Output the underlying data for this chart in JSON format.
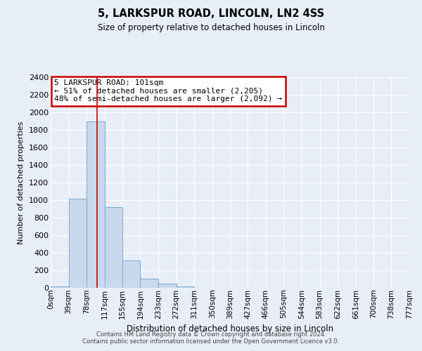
{
  "title": "5, LARKSPUR ROAD, LINCOLN, LN2 4SS",
  "subtitle": "Size of property relative to detached houses in Lincoln",
  "xlabel": "Distribution of detached houses by size in Lincoln",
  "ylabel": "Number of detached properties",
  "bar_color": "#c8d9ee",
  "bar_edgecolor": "#7aaacf",
  "bg_color": "#e8eef8",
  "grid_color": "#ffffff",
  "red_line_x": 101,
  "annotation_box_text": "5 LARKSPUR ROAD: 101sqm\n← 51% of detached houses are smaller (2,205)\n48% of semi-detached houses are larger (2,092) →",
  "annotation_box_color": "#ffffff",
  "annotation_box_edgecolor": "#cc0000",
  "footer1": "Contains HM Land Registry data © Crown copyright and database right 2024.",
  "footer2": "Contains public sector information licensed under the Open Government Licence v3.0.",
  "bin_edges": [
    0,
    39,
    78,
    117,
    155,
    194,
    233,
    272,
    311,
    350,
    389,
    427,
    466,
    505,
    544,
    583,
    622,
    661,
    700,
    738,
    777
  ],
  "bin_labels": [
    "0sqm",
    "39sqm",
    "78sqm",
    "117sqm",
    "155sqm",
    "194sqm",
    "233sqm",
    "272sqm",
    "311sqm",
    "350sqm",
    "389sqm",
    "427sqm",
    "466sqm",
    "505sqm",
    "544sqm",
    "583sqm",
    "622sqm",
    "661sqm",
    "700sqm",
    "738sqm",
    "777sqm"
  ],
  "bar_heights": [
    20,
    1020,
    1900,
    920,
    315,
    105,
    45,
    20,
    0,
    0,
    0,
    0,
    0,
    0,
    0,
    0,
    0,
    0,
    0,
    0
  ],
  "ylim": [
    0,
    2400
  ],
  "yticks": [
    0,
    200,
    400,
    600,
    800,
    1000,
    1200,
    1400,
    1600,
    1800,
    2000,
    2200,
    2400
  ]
}
